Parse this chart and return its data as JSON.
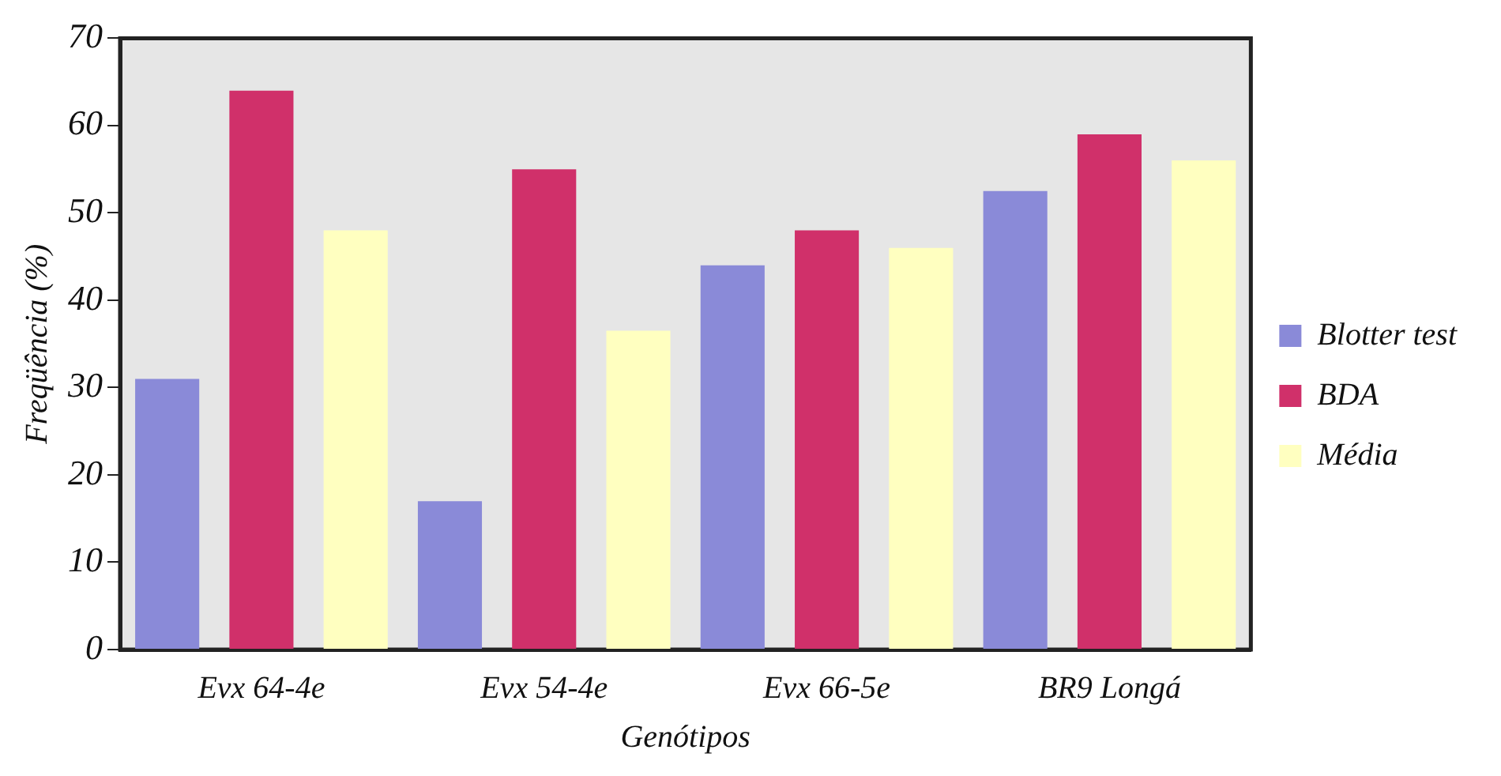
{
  "chart_data": {
    "type": "bar",
    "xlabel": "Genótipos",
    "ylabel": "Freqüência (%)",
    "categories": [
      "Evx 64-4e",
      "Evx 54-4e",
      "Evx 66-5e",
      "BR9 Longá"
    ],
    "series": [
      {
        "name": "Blotter test",
        "color": "#8a8ad8",
        "values": [
          31,
          17,
          44,
          52.5
        ]
      },
      {
        "name": "BDA",
        "color": "#d0306a",
        "values": [
          64,
          55,
          48,
          59
        ]
      },
      {
        "name": "Média",
        "color": "#ffffc0",
        "values": [
          48,
          36.5,
          46,
          56
        ]
      }
    ],
    "ylim": [
      0,
      70
    ],
    "yticks": [
      0,
      10,
      20,
      30,
      40,
      50,
      60,
      70
    ],
    "grid": false,
    "legend": "right"
  }
}
